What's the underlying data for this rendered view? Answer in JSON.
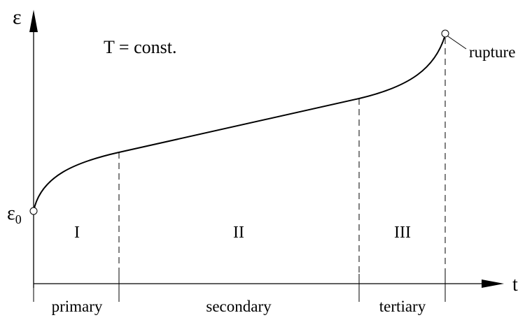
{
  "axes": {
    "y_label": "ε",
    "x_label": "t"
  },
  "annotation": "T = const.",
  "start_label": {
    "base": "ε",
    "subscript": "0"
  },
  "end_label": "rupture",
  "stages": [
    {
      "numeral": "I",
      "name": "primary"
    },
    {
      "numeral": "II",
      "name": "secondary"
    },
    {
      "numeral": "III",
      "name": "tertiary"
    }
  ]
}
